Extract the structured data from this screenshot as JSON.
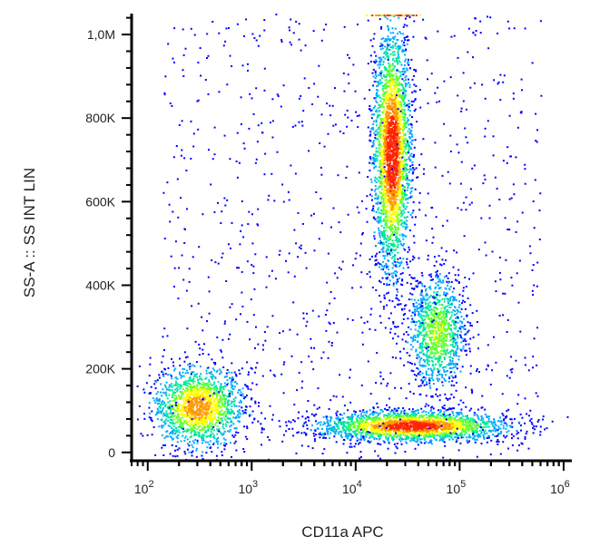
{
  "chart_data": {
    "type": "scatter",
    "title": "",
    "xlabel": "CD11a APC",
    "ylabel": "SS-A :: SS INT LIN",
    "x_scale": "log",
    "x_range": [
      70,
      1200000
    ],
    "y_range": [
      -20000,
      1050000
    ],
    "x_ticks": [
      {
        "value": 100,
        "base": "10",
        "exp": "2"
      },
      {
        "value": 1000,
        "base": "10",
        "exp": "3"
      },
      {
        "value": 10000,
        "base": "10",
        "exp": "4"
      },
      {
        "value": 100000,
        "base": "10",
        "exp": "5"
      },
      {
        "value": 1000000,
        "base": "10",
        "exp": "6"
      }
    ],
    "y_ticks": [
      {
        "value": 0,
        "label": "0"
      },
      {
        "value": 200000,
        "label": "200K"
      },
      {
        "value": 400000,
        "label": "400K"
      },
      {
        "value": 600000,
        "label": "600K"
      },
      {
        "value": 800000,
        "label": "800K"
      },
      {
        "value": 1000000,
        "label": "1,0M"
      }
    ],
    "grid": false,
    "density_colors": [
      "#0000ff",
      "#00aaff",
      "#00e5a0",
      "#66ff33",
      "#ffff00",
      "#ff9900",
      "#ff2200"
    ],
    "populations": [
      {
        "x_center": 300,
        "y_center": 110000,
        "x_spread_decades": 0.22,
        "y_spread": 48000,
        "peak_density": 0.78
      },
      {
        "x_center": 22000,
        "y_center": 720000,
        "x_spread_decades": 0.09,
        "y_spread": 145000,
        "peak_density": 1.0
      },
      {
        "x_center": 60000,
        "y_center": 290000,
        "x_spread_decades": 0.14,
        "y_spread": 70000,
        "peak_density": 0.55
      },
      {
        "x_center": 35000,
        "y_center": 65000,
        "x_spread_decades": 0.45,
        "y_spread": 18000,
        "peak_density": 0.95
      }
    ]
  }
}
